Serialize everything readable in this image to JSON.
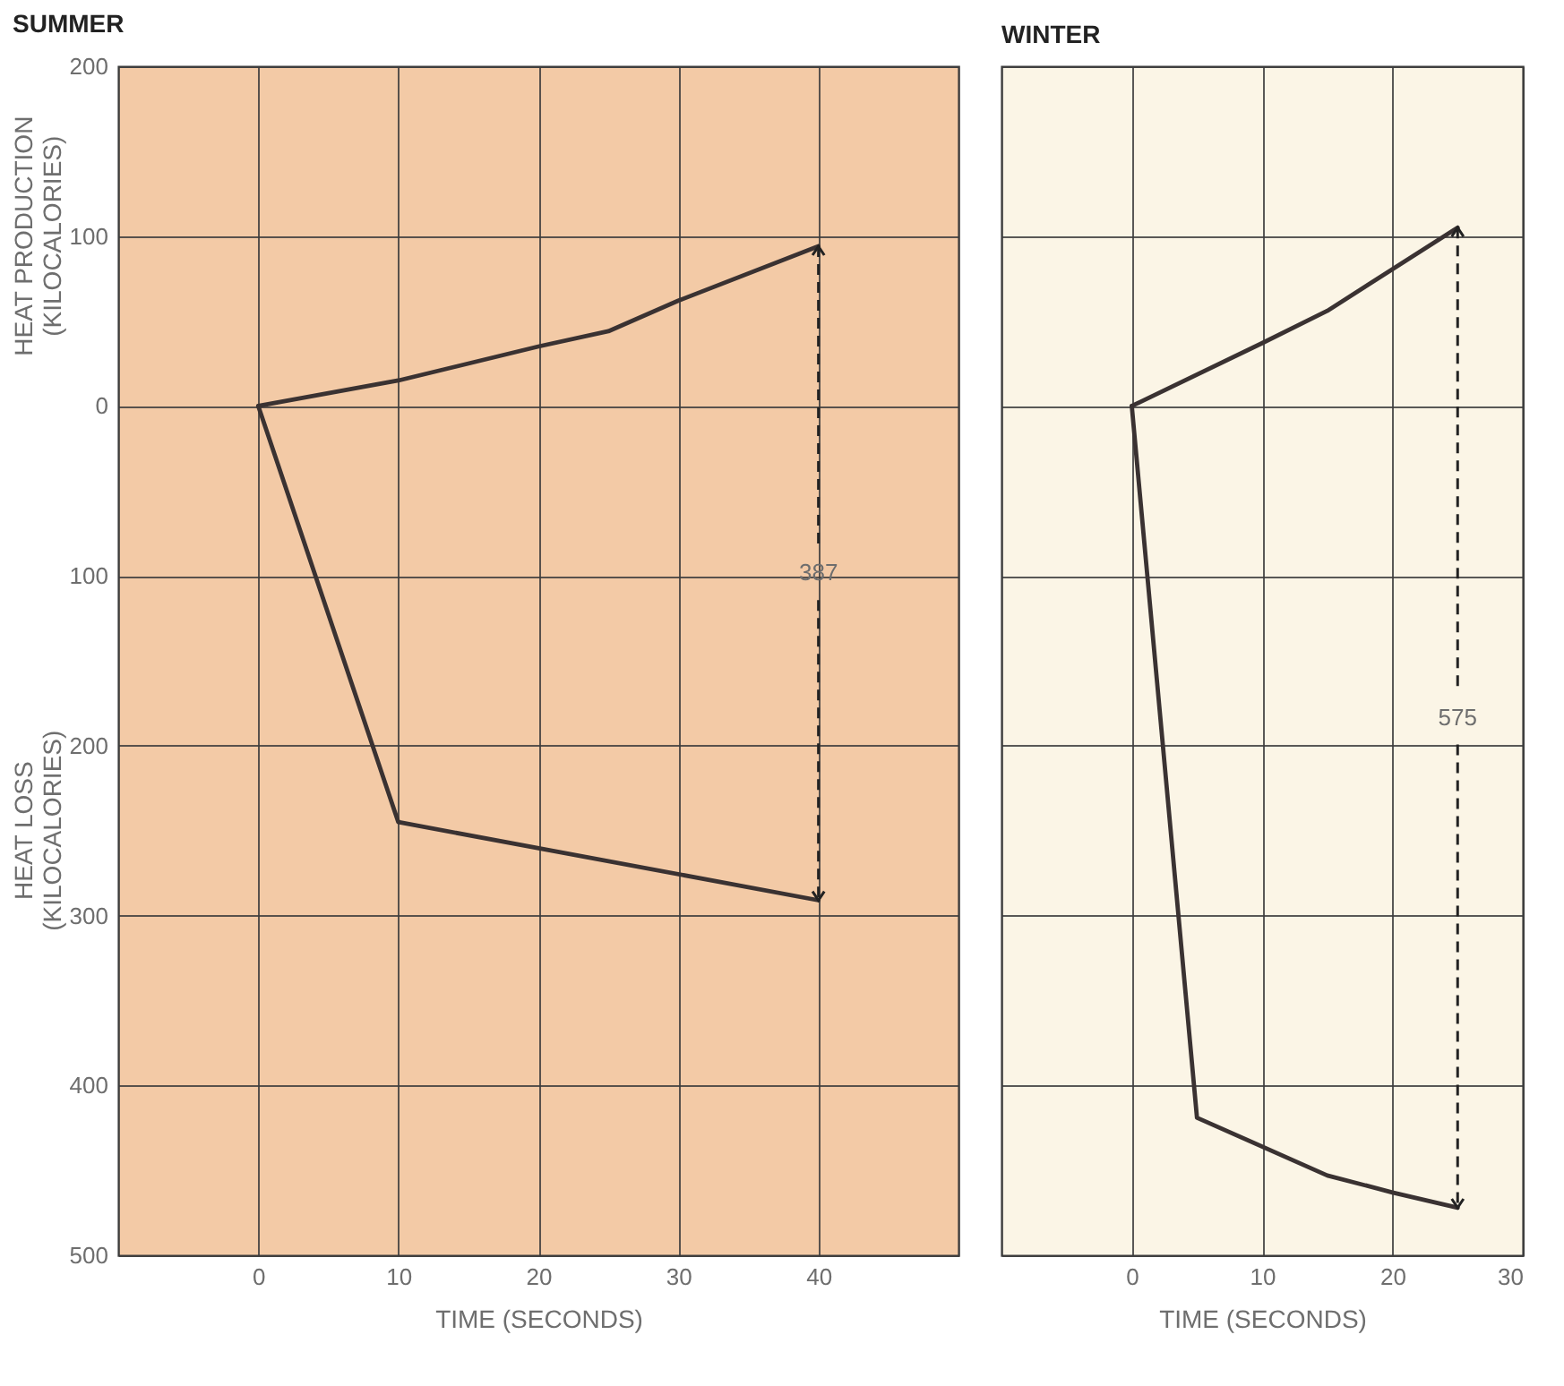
{
  "chart_data": [
    {
      "type": "line",
      "title": "SUMMER",
      "xlabel": "TIME (SECONDS)",
      "ylabel": "HEAT PRODUCTION\n(KILOCALORIES)",
      "annotations": [
        "HEAT LOSS\n(KILOCALORIES)",
        {
          "text": "387",
          "x": 40,
          "y": 94
        }
      ],
      "series": [
        {
          "color": "#3a3232",
          "x": [
            0,
            10,
            20,
            25,
            30,
            40
          ],
          "values": [
            0,
            15,
            35,
            44,
            62,
            94
          ]
        },
        {
          "color": "#3a3232",
          "x": [
            0,
            10,
            40
          ],
          "values": [
            0,
            -245,
            -291
          ]
        }
      ],
      "xlim": [
        -10,
        50
      ],
      "xticks": [
        0,
        10,
        20,
        30,
        40
      ],
      "ylim": [
        -500,
        200
      ],
      "yticks": [
        200,
        100,
        0,
        {
          "value": -100,
          "label": "100"
        },
        {
          "value": -200,
          "label": "200"
        },
        {
          "value": -300,
          "label": "300"
        },
        {
          "value": -400,
          "label": "400"
        },
        {
          "value": -500,
          "label": "500"
        }
      ],
      "grid": true,
      "line_style": "solid",
      "marker": "none"
    },
    {
      "type": "line",
      "title": "WINTER",
      "xlabel": "TIME (SECONDS)",
      "annotations": [
        {
          "text": "575",
          "x": 25,
          "y": 105
        }
      ],
      "series": [
        {
          "color": "#3a3232",
          "x": [
            0,
            10,
            15,
            25
          ],
          "values": [
            0,
            37,
            56,
            105
          ]
        },
        {
          "color": "#3a3232",
          "x": [
            0,
            5,
            15,
            20,
            25
          ],
          "values": [
            0,
            -419,
            -453,
            -463,
            -472
          ]
        }
      ],
      "xlim": [
        -10,
        30
      ],
      "xticks": [
        0,
        10,
        20,
        30
      ],
      "ylim": [
        -500,
        200
      ],
      "yticks": [
        200,
        100,
        0,
        -100,
        -200,
        -300,
        -400,
        -500
      ],
      "tick_labels": "x",
      "grid": true,
      "line_style": "solid",
      "marker": "none"
    }
  ]
}
